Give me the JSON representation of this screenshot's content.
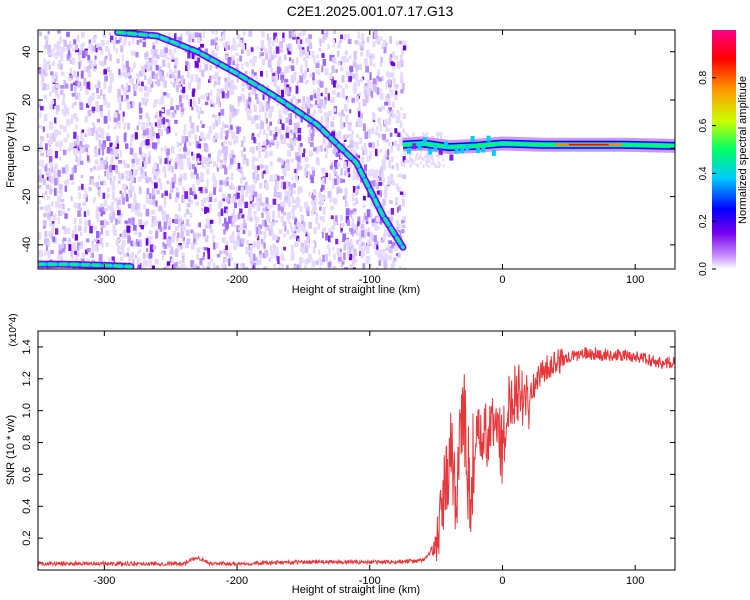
{
  "title": "C2E1.2025.001.07.17.G13",
  "chart_data": [
    {
      "type": "heatmap",
      "xlabel": "Height of straight line (km)",
      "ylabel": "Frequency (Hz)",
      "xlim": [
        -350,
        130
      ],
      "ylim": [
        -50,
        49
      ],
      "xticks": [
        -300,
        -200,
        -100,
        0,
        100
      ],
      "yticks": [
        -40,
        -20,
        0,
        20,
        40
      ],
      "colorbar": {
        "label": "Normalized spectral amplitude",
        "range": [
          0,
          1
        ],
        "ticks": [
          0.0,
          0.2,
          0.4,
          0.6,
          0.8
        ],
        "tick_labels": [
          "0.0",
          "0.2",
          "0.4",
          "0.6",
          "0.8"
        ],
        "colors": [
          "#ffffff",
          "#cc99ff",
          "#7700ee",
          "#0000ff",
          "#00ccff",
          "#00ff66",
          "#ccff00",
          "#ff9900",
          "#ff0000",
          "#ff0088"
        ]
      },
      "features": [
        {
          "name": "descending-track",
          "x": [
            -290,
            -260,
            -230,
            -200,
            -170,
            -140,
            -110,
            -90,
            -75
          ],
          "y": [
            48,
            46.5,
            40,
            31,
            21,
            10,
            -6,
            -28,
            -41
          ]
        },
        {
          "name": "flat-track",
          "x": [
            -75,
            -60,
            -40,
            -20,
            0,
            30,
            60,
            90,
            130
          ],
          "y": [
            1.5,
            2,
            0.5,
            1,
            2,
            1.5,
            1.5,
            1.5,
            1
          ]
        },
        {
          "name": "bottom-band",
          "x": [
            -350,
            -330,
            -300,
            -280
          ],
          "y": [
            -48,
            -48,
            -48.5,
            -49
          ]
        }
      ]
    },
    {
      "type": "line",
      "xlabel": "Height of straight line (km)",
      "ylabel": "SNR (10 * v/v)",
      "yscale_label": "(x10^4)",
      "xlim": [
        -350,
        130
      ],
      "ylim": [
        0,
        1.5
      ],
      "xticks": [
        -300,
        -200,
        -100,
        0,
        100
      ],
      "yticks": [
        0.2,
        0.4,
        0.6,
        0.8,
        1.0,
        1.2,
        1.4
      ],
      "ytick_labels": [
        "0.2",
        "0.4",
        "0.6",
        "0.8",
        "1.0",
        "1.2",
        "1.4"
      ],
      "color": "#e8373a",
      "x": [
        -350,
        -300,
        -240,
        -230,
        -220,
        -200,
        -150,
        -100,
        -80,
        -60,
        -50,
        -45,
        -40,
        -35,
        -30,
        -25,
        -20,
        -10,
        -5,
        0,
        5,
        10,
        20,
        30,
        40,
        50,
        60,
        80,
        100,
        110,
        120,
        130
      ],
      "values": [
        0.04,
        0.04,
        0.04,
        0.08,
        0.04,
        0.04,
        0.05,
        0.05,
        0.05,
        0.06,
        0.15,
        0.4,
        0.7,
        0.5,
        1.05,
        0.5,
        0.8,
        0.85,
        0.95,
        0.75,
        1.05,
        1.15,
        1.1,
        1.25,
        1.3,
        1.33,
        1.36,
        1.35,
        1.34,
        1.32,
        1.3,
        1.3
      ]
    }
  ]
}
